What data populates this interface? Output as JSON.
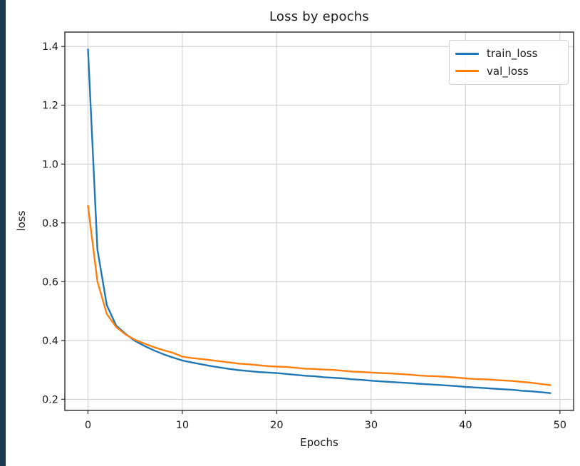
{
  "page": {
    "background": "#ffffff",
    "left_strip_color": "#1d3a53",
    "frame_color": "#2b2b2b",
    "grid_color": "#cccccc",
    "tick_color": "#2b2b2b",
    "text_color": "#1a1a1a"
  },
  "chart_data": {
    "type": "line",
    "title": "Loss by epochs",
    "xlabel": "Epochs",
    "ylabel": "loss",
    "grid": true,
    "legend_position": "upper right",
    "xlim": [
      -2.45,
      51.45
    ],
    "ylim": [
      0.162,
      1.449
    ],
    "xticks": [
      0,
      10,
      20,
      30,
      40,
      50
    ],
    "xtick_labels": [
      "0",
      "10",
      "20",
      "30",
      "40",
      "50"
    ],
    "yticks": [
      0.2,
      0.4,
      0.6,
      0.8,
      1.0,
      1.2,
      1.4
    ],
    "ytick_labels": [
      "0.2",
      "0.4",
      "0.6",
      "0.8",
      "1.0",
      "1.2",
      "1.4"
    ],
    "x": [
      0,
      1,
      2,
      3,
      4,
      5,
      6,
      7,
      8,
      9,
      10,
      11,
      12,
      13,
      14,
      15,
      16,
      17,
      18,
      19,
      20,
      21,
      22,
      23,
      24,
      25,
      26,
      27,
      28,
      29,
      30,
      31,
      32,
      33,
      34,
      35,
      36,
      37,
      38,
      39,
      40,
      41,
      42,
      43,
      44,
      45,
      46,
      47,
      48,
      49
    ],
    "series": [
      {
        "name": "train_loss",
        "color": "#1f77b4",
        "values": [
          1.39,
          0.71,
          0.52,
          0.45,
          0.422,
          0.398,
          0.381,
          0.366,
          0.353,
          0.342,
          0.332,
          0.325,
          0.319,
          0.313,
          0.308,
          0.303,
          0.299,
          0.296,
          0.293,
          0.291,
          0.289,
          0.286,
          0.283,
          0.28,
          0.278,
          0.275,
          0.273,
          0.271,
          0.268,
          0.266,
          0.263,
          0.261,
          0.259,
          0.257,
          0.255,
          0.253,
          0.251,
          0.249,
          0.247,
          0.245,
          0.242,
          0.24,
          0.238,
          0.236,
          0.234,
          0.232,
          0.229,
          0.227,
          0.224,
          0.221
        ]
      },
      {
        "name": "val_loss",
        "color": "#ff7f0e",
        "values": [
          0.858,
          0.601,
          0.49,
          0.445,
          0.42,
          0.402,
          0.389,
          0.377,
          0.367,
          0.358,
          0.345,
          0.34,
          0.337,
          0.333,
          0.329,
          0.325,
          0.321,
          0.319,
          0.316,
          0.313,
          0.311,
          0.31,
          0.307,
          0.304,
          0.303,
          0.301,
          0.3,
          0.297,
          0.294,
          0.293,
          0.291,
          0.289,
          0.288,
          0.286,
          0.284,
          0.281,
          0.279,
          0.278,
          0.276,
          0.274,
          0.271,
          0.269,
          0.268,
          0.266,
          0.264,
          0.262,
          0.259,
          0.256,
          0.252,
          0.248
        ]
      }
    ]
  }
}
